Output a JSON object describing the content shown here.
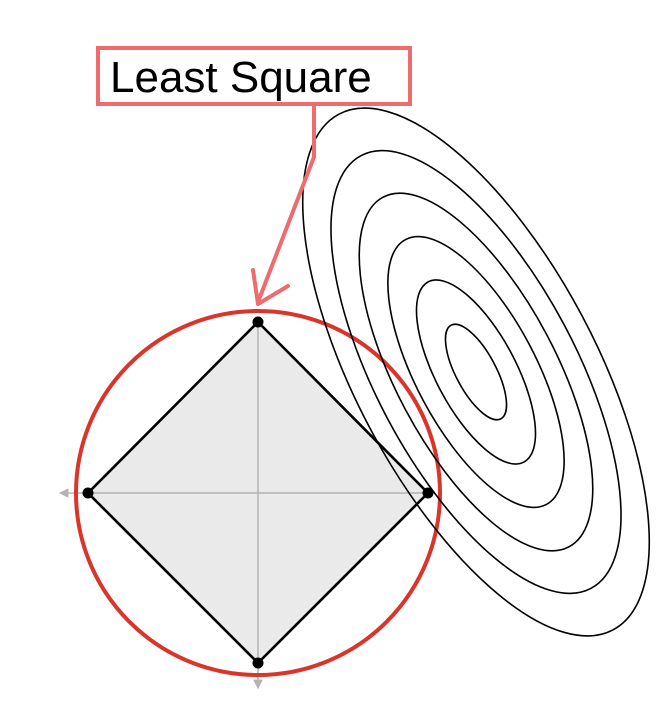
{
  "callout": {
    "label": "Least Square"
  },
  "colors": {
    "callout_border": "#ee6b6e",
    "arrow": "#ee6b6e",
    "circle": "#d9352b",
    "diamond_fill": "#e6e6e6",
    "diamond_stroke": "#000000",
    "axes": "#b3b3b3",
    "contours": "#000000"
  },
  "diagram": {
    "constraint_shapes": [
      "l1-diamond",
      "l2-circle"
    ],
    "contour_count": 6
  }
}
